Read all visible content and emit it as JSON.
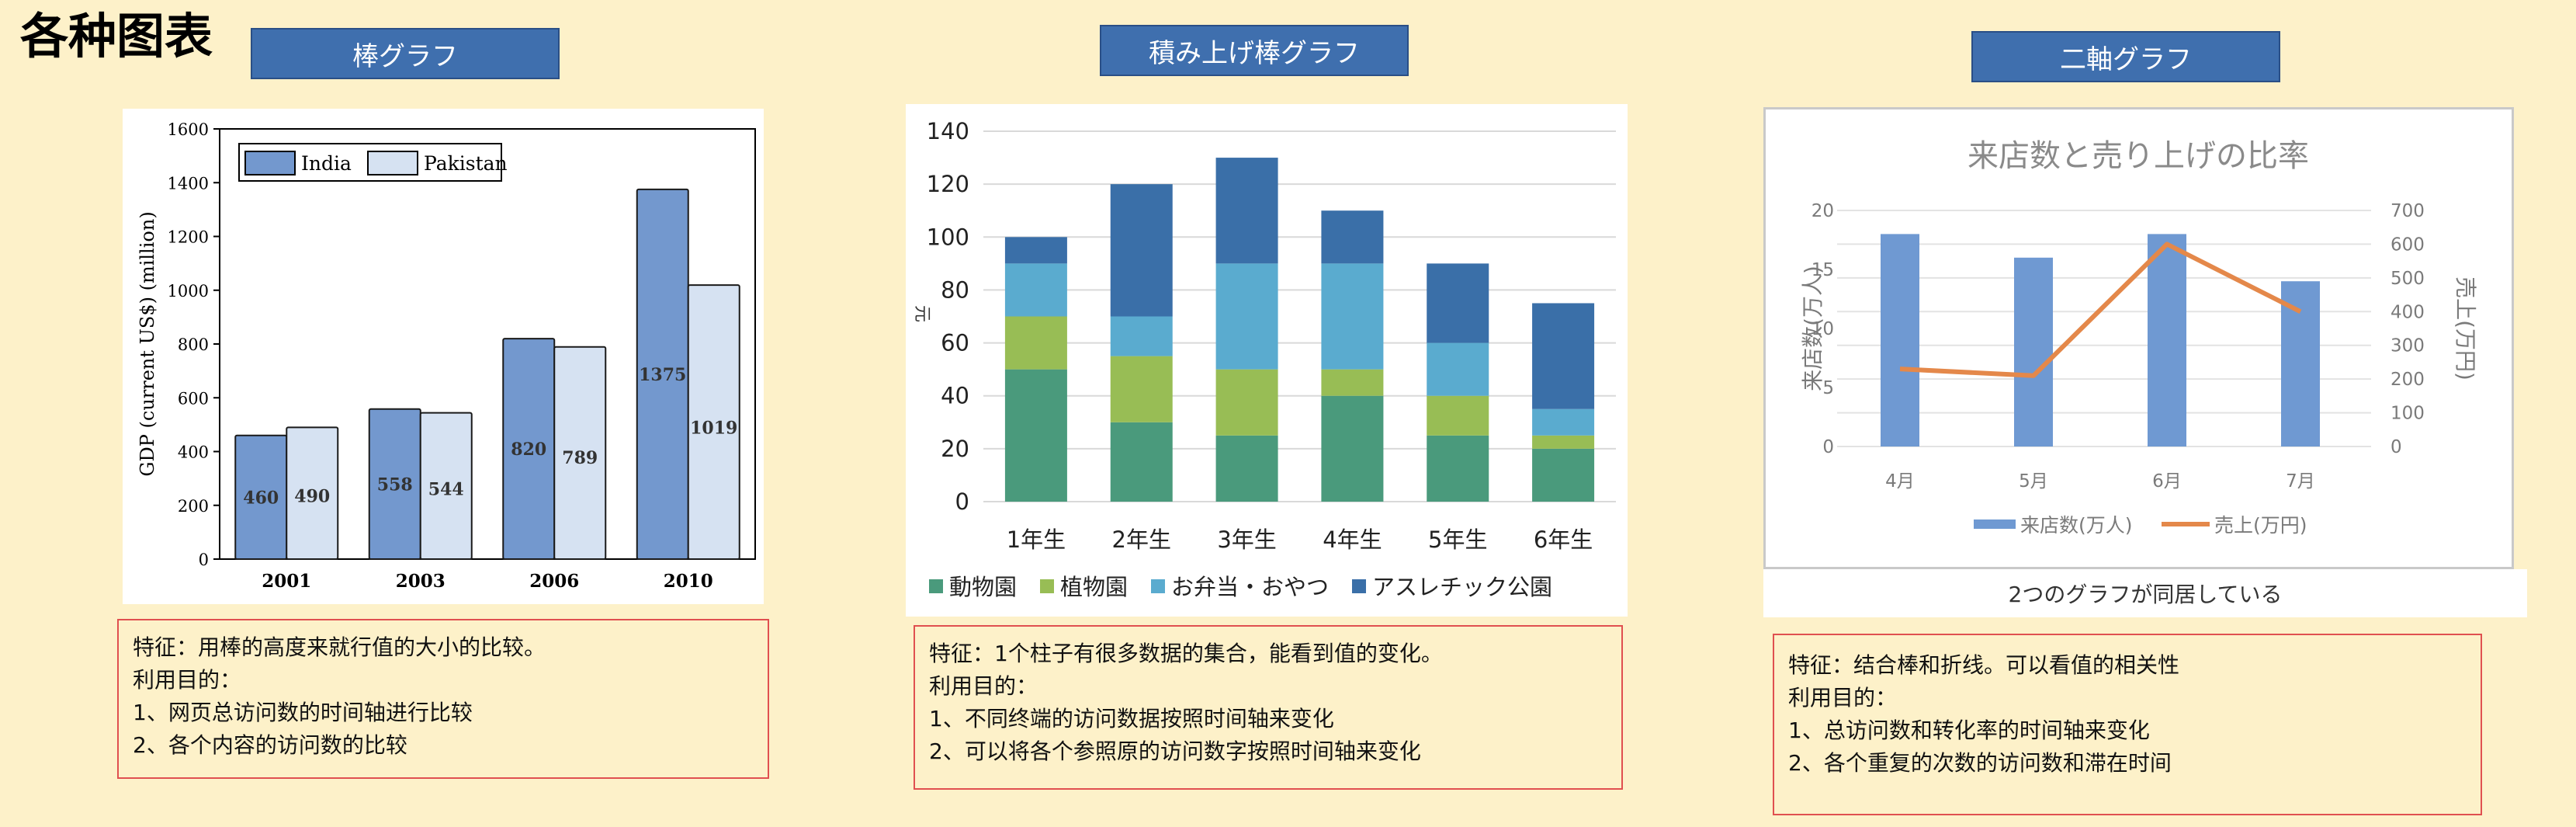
{
  "page": {
    "title": "各种图表"
  },
  "sections": [
    {
      "header": "棒グラフ",
      "desc": [
        "特征：用棒的高度来就行值的大小的比较。",
        "利用目的：",
        "1、网页总访问数的时间轴进行比较",
        "2、各个内容的访问数的比较"
      ]
    },
    {
      "header": "積み上げ棒グラフ",
      "desc": [
        "特征：1个柱子有很多数据的集合，能看到值的变化。",
        "利用目的：",
        "1、不同终端的访问数据按照时间轴来变化",
        "2、可以将各个参照原的访问数字按照时间轴来变化"
      ]
    },
    {
      "header": "二軸グラフ",
      "caption": "2つのグラフが同居している",
      "desc": [
        "特征：结合棒和折线。可以看值的相关性",
        "利用目的：",
        "1、总访问数和转化率的时间轴来变化",
        "2、各个重复的次数的访问数和滞在时间"
      ]
    }
  ],
  "chart_data": [
    {
      "type": "bar",
      "categories": [
        "2001",
        "2003",
        "2006",
        "2010"
      ],
      "series": [
        {
          "name": "India",
          "values": [
            460,
            558,
            820,
            1375
          ],
          "color": "#7398ce"
        },
        {
          "name": "Pakistan",
          "values": [
            490,
            544,
            789,
            1019
          ],
          "color": "#d6e2f2"
        }
      ],
      "ylabel": "GDP (current US$) (million)",
      "ylim": [
        0,
        1600
      ],
      "yticks": [
        "0",
        "200",
        "400",
        "600",
        "800",
        "1000",
        "1200",
        "1400",
        "1600"
      ],
      "data_labels": true,
      "legend": "top-left"
    },
    {
      "type": "bar",
      "stacked": true,
      "categories": [
        "1年生",
        "2年生",
        "3年生",
        "4年生",
        "5年生",
        "6年生"
      ],
      "series": [
        {
          "name": "動物園",
          "values": [
            50,
            30,
            25,
            40,
            25,
            20
          ],
          "color": "#4a9a7c"
        },
        {
          "name": "植物園",
          "values": [
            20,
            25,
            25,
            10,
            15,
            5
          ],
          "color": "#98bd55"
        },
        {
          "name": "お弁当・おやつ",
          "values": [
            20,
            15,
            40,
            40,
            20,
            10
          ],
          "color": "#5aabcf"
        },
        {
          "name": "アスレチック公園",
          "values": [
            10,
            50,
            40,
            20,
            30,
            40
          ],
          "color": "#3a6fa8"
        }
      ],
      "ylabel": "元",
      "ylim": [
        0,
        140
      ],
      "yticks": [
        "0",
        "20",
        "40",
        "60",
        "80",
        "100",
        "120",
        "140"
      ],
      "legend": "bottom"
    },
    {
      "type": "bar",
      "title": "来店数と売り上げの比率",
      "categories": [
        "4月",
        "5月",
        "6月",
        "7月"
      ],
      "series": [
        {
          "name": "来店数(万人)",
          "values": [
            18,
            16,
            18,
            14
          ],
          "color": "#6f99d2",
          "axis": "left"
        },
        {
          "name": "売上(万円)",
          "type": "line",
          "values": [
            230,
            210,
            600,
            400
          ],
          "color": "#e4884a",
          "axis": "right"
        }
      ],
      "ylabel": "来店数(万人)",
      "y2label": "売上(万円)",
      "ylim": [
        0,
        20
      ],
      "y2lim": [
        0,
        700
      ],
      "yticks": [
        "0",
        "5",
        "10",
        "15",
        "20"
      ],
      "y2ticks": [
        "0",
        "100",
        "200",
        "300",
        "400",
        "500",
        "600",
        "700"
      ],
      "legend": "bottom"
    }
  ]
}
